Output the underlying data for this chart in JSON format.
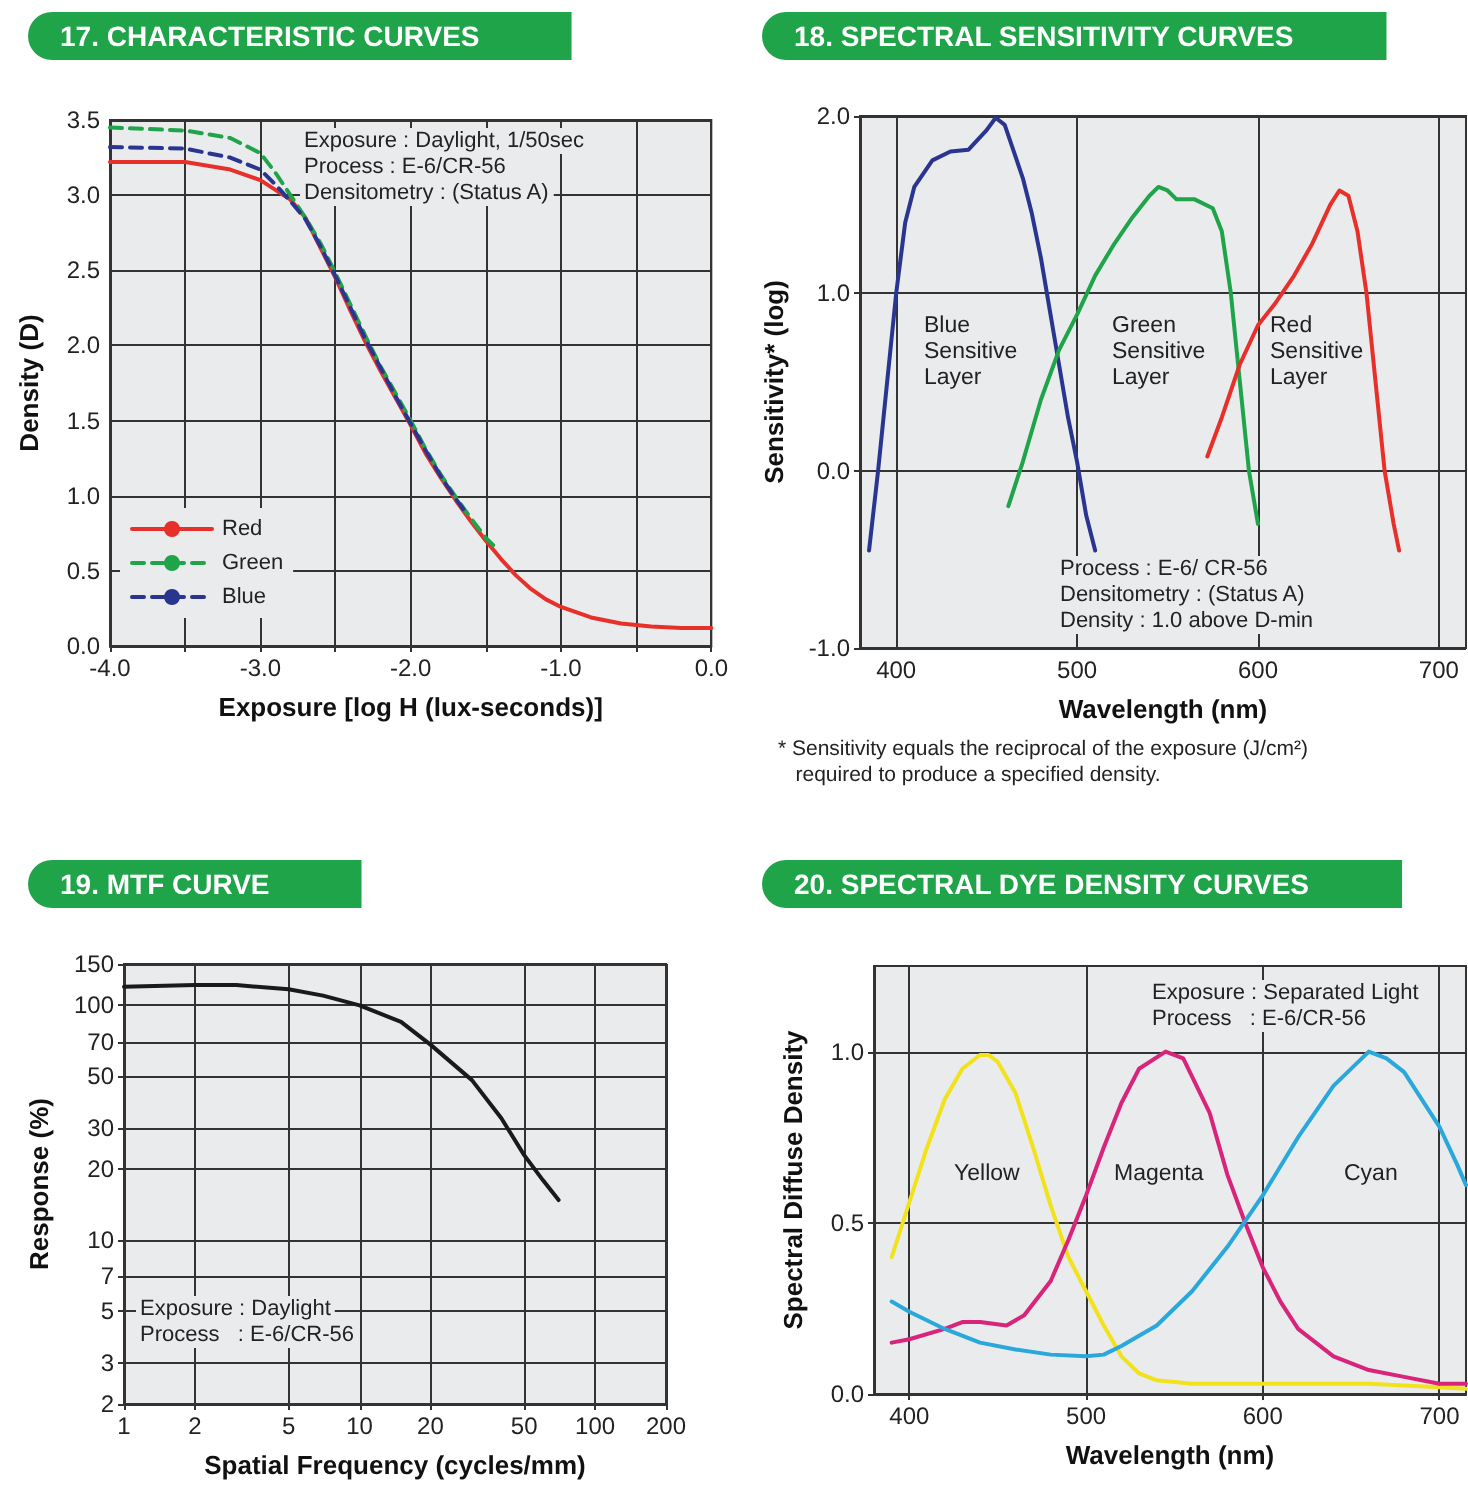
{
  "chart_data": [
    {
      "type": "line",
      "title": "17. CHARACTERISTIC CURVES",
      "xlabel": "Exposure [log H (lux-seconds)]",
      "ylabel": "Density (D)",
      "xlim": [
        -4,
        0
      ],
      "ylim": [
        0,
        3.5
      ],
      "xticks": [
        {
          "value": -4,
          "label": "-4.0"
        },
        {
          "value": -3.5,
          "label": null
        },
        {
          "value": -3,
          "label": "-3.0"
        },
        {
          "value": -2.5,
          "label": null
        },
        {
          "value": -2,
          "label": "-2.0"
        },
        {
          "value": -1.5,
          "label": null
        },
        {
          "value": -1,
          "label": "-1.0"
        },
        {
          "value": -0.5,
          "label": null
        },
        {
          "value": 0,
          "label": "0.0"
        }
      ],
      "yticks": [
        {
          "value": 0,
          "label": "0.0"
        },
        {
          "value": 0.5,
          "label": "0.5"
        },
        {
          "value": 1,
          "label": "1.0"
        },
        {
          "value": 1.5,
          "label": "1.5"
        },
        {
          "value": 2,
          "label": "2.0"
        },
        {
          "value": 2.5,
          "label": "2.5"
        },
        {
          "value": 3,
          "label": "3.0"
        },
        {
          "value": 3.5,
          "label": "3.5"
        }
      ],
      "grid": true,
      "legend": "bottom left",
      "marker": "none",
      "annotations": [
        "Exposure : Daylight, 1/50sec",
        "Process : E-6/CR-56",
        "Densitometry : (Status A)"
      ],
      "series": [
        {
          "name": "Red",
          "color": "#e8302a",
          "line_style": "solid",
          "x": [
            -4,
            -3.5,
            -3.2,
            -3,
            -2.8,
            -2.7,
            -2.6,
            -2.5,
            -2.4,
            -2.3,
            -2.2,
            -2.1,
            -2,
            -1.9,
            -1.8,
            -1.7,
            -1.6,
            -1.5,
            -1.4,
            -1.3,
            -1.2,
            -1.1,
            -1,
            -0.8,
            -0.6,
            -0.4,
            -0.2,
            0
          ],
          "values": [
            3.22,
            3.22,
            3.17,
            3.1,
            2.97,
            2.85,
            2.65,
            2.45,
            2.23,
            2.02,
            1.83,
            1.65,
            1.47,
            1.28,
            1.12,
            0.97,
            0.83,
            0.7,
            0.58,
            0.47,
            0.38,
            0.31,
            0.26,
            0.19,
            0.15,
            0.13,
            0.12,
            0.12
          ]
        },
        {
          "name": "Green",
          "color": "#1fa44a",
          "line_style": "dashed",
          "x": [
            -4,
            -3.5,
            -3.2,
            -3,
            -2.9,
            -2.8,
            -2.7,
            -2.6,
            -2.5,
            -2.4,
            -2.3,
            -2.2,
            -2.1,
            -2,
            -1.9,
            -1.8,
            -1.7,
            -1.6,
            -1.5,
            -1.45
          ],
          "values": [
            3.45,
            3.43,
            3.38,
            3.28,
            3.15,
            3.0,
            2.85,
            2.68,
            2.48,
            2.27,
            2.06,
            1.86,
            1.68,
            1.5,
            1.31,
            1.14,
            0.99,
            0.85,
            0.72,
            0.67
          ]
        },
        {
          "name": "Blue",
          "color": "#2a3590",
          "line_style": "dashed",
          "x": [
            -4,
            -3.5,
            -3.2,
            -3,
            -2.9,
            -2.8,
            -2.7,
            -2.6,
            -2.5,
            -2.4,
            -2.3,
            -2.2,
            -2.1,
            -2,
            -1.9,
            -1.8,
            -1.7,
            -1.65
          ],
          "values": [
            3.32,
            3.31,
            3.25,
            3.17,
            3.07,
            2.96,
            2.84,
            2.66,
            2.46,
            2.25,
            2.04,
            1.85,
            1.66,
            1.48,
            1.3,
            1.13,
            0.98,
            0.91
          ]
        }
      ]
    },
    {
      "type": "line",
      "title": "18. SPECTRAL SENSITIVITY CURVES",
      "xlabel": "Wavelength (nm)",
      "ylabel": "Sensitivity* (log)",
      "xlim": [
        380,
        715
      ],
      "ylim": [
        -1,
        2
      ],
      "xticks": [
        400,
        500,
        600,
        700
      ],
      "yticks": [
        {
          "value": -1,
          "label": "-1.0"
        },
        {
          "value": 0,
          "label": "0.0"
        },
        {
          "value": 1,
          "label": "1.0"
        },
        {
          "value": 2,
          "label": "2.0"
        }
      ],
      "grid": true,
      "marker": "none",
      "annotations": [
        "Process : E-6/ CR-56",
        "Densitometry : (Status A)",
        "Density : 1.0 above D-min",
        "* Sensitivity equals the reciprocal of the exposure (J/cm²)\n   required to produce a specified density.",
        "Blue\nSensitive\nLayer",
        "Green\nSensitive\nLayer",
        "Red\nSensitive\nLayer"
      ],
      "series": [
        {
          "color": "#2a3590",
          "x": [
            385,
            390,
            395,
            400,
            405,
            410,
            420,
            430,
            440,
            450,
            455,
            460,
            465,
            470,
            475,
            480,
            485,
            490,
            495,
            500,
            505,
            510
          ],
          "values": [
            -0.45,
            0.0,
            0.5,
            1.0,
            1.4,
            1.6,
            1.75,
            1.8,
            1.81,
            1.92,
            1.99,
            1.95,
            1.8,
            1.65,
            1.45,
            1.2,
            0.9,
            0.6,
            0.3,
            0.05,
            -0.25,
            -0.45
          ]
        },
        {
          "color": "#1fa44a",
          "x": [
            462,
            470,
            480,
            490,
            500,
            510,
            520,
            530,
            540,
            545,
            550,
            555,
            565,
            575,
            580,
            585,
            590,
            595,
            600
          ],
          "values": [
            -0.2,
            0.05,
            0.4,
            0.68,
            0.88,
            1.1,
            1.27,
            1.42,
            1.55,
            1.6,
            1.58,
            1.53,
            1.53,
            1.48,
            1.35,
            1.0,
            0.5,
            0.0,
            -0.3
          ]
        },
        {
          "color": "#e8302a",
          "x": [
            572,
            580,
            590,
            600,
            610,
            620,
            630,
            640,
            645,
            650,
            655,
            660,
            665,
            670,
            675,
            678
          ],
          "values": [
            0.08,
            0.3,
            0.6,
            0.82,
            0.95,
            1.1,
            1.28,
            1.5,
            1.58,
            1.55,
            1.35,
            1.0,
            0.5,
            0.0,
            -0.3,
            -0.45
          ]
        }
      ]
    },
    {
      "type": "line",
      "title": "19. MTF CURVE",
      "xlabel": "Spatial Frequency (cycles/mm)",
      "ylabel": "Response (%)",
      "log": "xy",
      "xlim": [
        1,
        200
      ],
      "ylim": [
        2,
        150
      ],
      "xticks": [
        1,
        2,
        5,
        10,
        20,
        50,
        100,
        200
      ],
      "yticks": [
        2,
        3,
        5,
        7,
        10,
        20,
        30,
        50,
        70,
        100,
        150
      ],
      "grid": true,
      "marker": "none",
      "annotations": [
        "Exposure : Daylight",
        "Process   : E-6/CR-56"
      ],
      "series": [
        {
          "color": "#1a1a1a",
          "x": [
            1,
            2,
            3,
            5,
            7,
            10,
            15,
            20,
            30,
            40,
            50,
            60,
            70
          ],
          "values": [
            120,
            122,
            122,
            117,
            110,
            100,
            85,
            68,
            48,
            33,
            23,
            18,
            14.8
          ]
        }
      ]
    },
    {
      "type": "line",
      "title": "20. SPECTRAL DYE DENSITY CURVES",
      "xlabel": "Wavelength (nm)",
      "ylabel": "Spectral Diffuse Density",
      "xlim": [
        380,
        715
      ],
      "ylim": [
        0,
        1.25
      ],
      "xticks": [
        400,
        500,
        600,
        700
      ],
      "yticks": [
        {
          "value": 0,
          "label": "0.0"
        },
        {
          "value": 0.5,
          "label": "0.5"
        },
        {
          "value": 1,
          "label": "1.0"
        }
      ],
      "grid": true,
      "marker": "none",
      "annotations": [
        "Exposure : Separated Light",
        "Process   : E-6/CR-56",
        "Yellow",
        "Magenta",
        "Cyan"
      ],
      "series": [
        {
          "color": "#f2e21c",
          "x": [
            390,
            400,
            410,
            420,
            430,
            440,
            445,
            450,
            460,
            470,
            480,
            490,
            500,
            510,
            520,
            530,
            540,
            560,
            600,
            660,
            700,
            715
          ],
          "values": [
            0.4,
            0.56,
            0.72,
            0.86,
            0.95,
            0.99,
            0.99,
            0.97,
            0.88,
            0.72,
            0.55,
            0.4,
            0.3,
            0.2,
            0.11,
            0.06,
            0.04,
            0.03,
            0.03,
            0.03,
            0.02,
            0.015
          ]
        },
        {
          "color": "#d8247a",
          "x": [
            390,
            400,
            420,
            430,
            440,
            455,
            465,
            480,
            490,
            500,
            510,
            520,
            530,
            545,
            555,
            570,
            580,
            590,
            600,
            610,
            620,
            640,
            660,
            680,
            700,
            715
          ],
          "values": [
            0.15,
            0.16,
            0.19,
            0.21,
            0.21,
            0.2,
            0.23,
            0.33,
            0.45,
            0.58,
            0.72,
            0.85,
            0.95,
            1.0,
            0.98,
            0.82,
            0.64,
            0.5,
            0.37,
            0.27,
            0.19,
            0.11,
            0.07,
            0.05,
            0.03,
            0.03
          ]
        },
        {
          "color": "#2aa8dc",
          "x": [
            390,
            400,
            420,
            440,
            460,
            480,
            500,
            510,
            520,
            540,
            560,
            580,
            600,
            620,
            640,
            660,
            670,
            680,
            700,
            710,
            715
          ],
          "values": [
            0.27,
            0.24,
            0.19,
            0.15,
            0.13,
            0.115,
            0.11,
            0.115,
            0.14,
            0.2,
            0.3,
            0.43,
            0.58,
            0.75,
            0.9,
            1.0,
            0.98,
            0.94,
            0.78,
            0.67,
            0.61
          ]
        }
      ]
    }
  ]
}
